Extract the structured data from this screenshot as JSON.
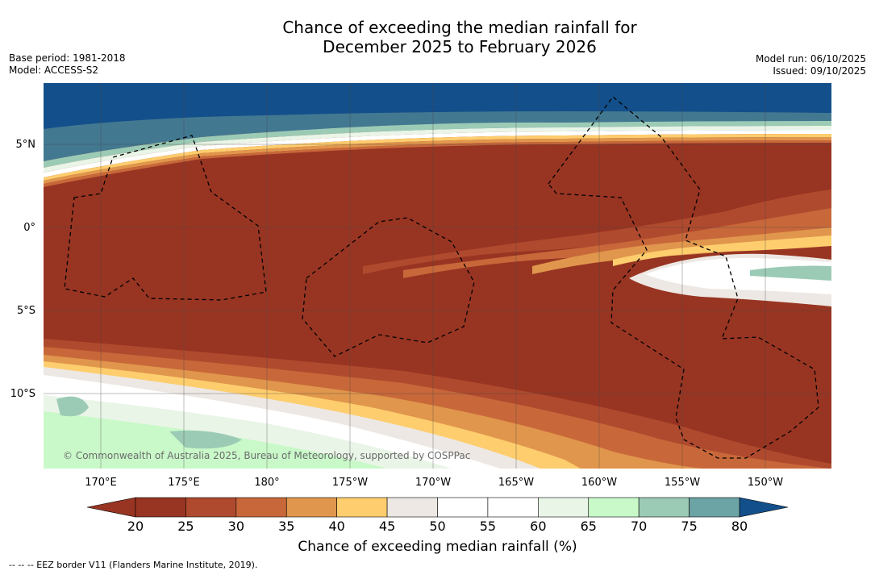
{
  "title": {
    "line1": "Chance of exceeding the median rainfall for",
    "line2": "December 2025 to February 2026"
  },
  "meta_left": {
    "base_period": "Base period: 1981-2018",
    "model": "Model: ACCESS-S2"
  },
  "meta_right": {
    "model_run": "Model run: 06/10/2025",
    "issued": "Issued: 09/10/2025"
  },
  "map": {
    "lon_labels": [
      "170°E",
      "175°E",
      "180°",
      "175°W",
      "170°W",
      "165°W",
      "160°W",
      "155°W",
      "150°W"
    ],
    "lat_labels": [
      "5°N",
      "0°",
      "5°S",
      "10°S"
    ],
    "copyright": "© Commonwealth of Australia 2025, Bureau of Meteorology, supported by COSPPac"
  },
  "colorbar": {
    "ticks": [
      "20",
      "25",
      "30",
      "35",
      "40",
      "45",
      "50",
      "55",
      "60",
      "65",
      "70",
      "75",
      "80"
    ],
    "colors": [
      "#983522",
      "#b04a2e",
      "#c8683a",
      "#e0964c",
      "#fecd6e",
      "#ede8e3",
      "#ffffff",
      "#ffffff",
      "#e9f5e7",
      "#c9f9c9",
      "#9ccbb5",
      "#6ca3a5",
      "#437891"
    ],
    "low_color": "#983522",
    "high_color": "#134f8a",
    "title": "Chance of exceeding median rainfall (%)"
  },
  "footer": "-- -- -- EEZ border V11 (Flanders Marine Institute, 2019)."
}
